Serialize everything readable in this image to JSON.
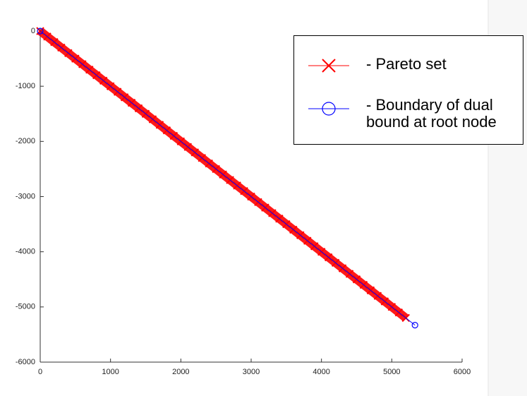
{
  "chart_data": {
    "type": "line",
    "xlim": [
      0,
      6000
    ],
    "ylim": [
      -6000,
      0
    ],
    "xticks": [
      0,
      1000,
      2000,
      3000,
      4000,
      5000,
      6000
    ],
    "yticks": [
      0,
      -1000,
      -2000,
      -3000,
      -4000,
      -5000,
      -6000
    ],
    "legend": "upper right",
    "series": [
      {
        "name": "- Pareto set",
        "color": "#ff0000",
        "marker": "x",
        "x": [
          0,
          100,
          200,
          300,
          400,
          500,
          600,
          700,
          800,
          900,
          1000,
          1100,
          1200,
          1300,
          1400,
          1500,
          1600,
          1700,
          1800,
          1900,
          2000,
          2100,
          2200,
          2300,
          2400,
          2500,
          2600,
          2700,
          2800,
          2900,
          3000,
          3100,
          3200,
          3300,
          3400,
          3500,
          3600,
          3700,
          3800,
          3900,
          4000,
          4100,
          4200,
          4300,
          4400,
          4500,
          4600,
          4700,
          4800,
          4900,
          5000,
          5100,
          5200
        ],
        "values": [
          0,
          -100,
          -200,
          -300,
          -400,
          -500,
          -600,
          -700,
          -800,
          -900,
          -1000,
          -1100,
          -1200,
          -1300,
          -1400,
          -1500,
          -1600,
          -1700,
          -1800,
          -1900,
          -2000,
          -2100,
          -2200,
          -2300,
          -2400,
          -2500,
          -2600,
          -2700,
          -2800,
          -2900,
          -3000,
          -3100,
          -3200,
          -3300,
          -3400,
          -3500,
          -3600,
          -3700,
          -3800,
          -3900,
          -4000,
          -4100,
          -4200,
          -4300,
          -4400,
          -4500,
          -4600,
          -4700,
          -4800,
          -4900,
          -5000,
          -5100,
          -5200
        ]
      },
      {
        "name": "- Boundary of dual bound at root node",
        "color": "#0000ff",
        "marker": "o",
        "x": [
          0,
          5330
        ],
        "values": [
          0,
          -5330
        ]
      }
    ]
  }
}
